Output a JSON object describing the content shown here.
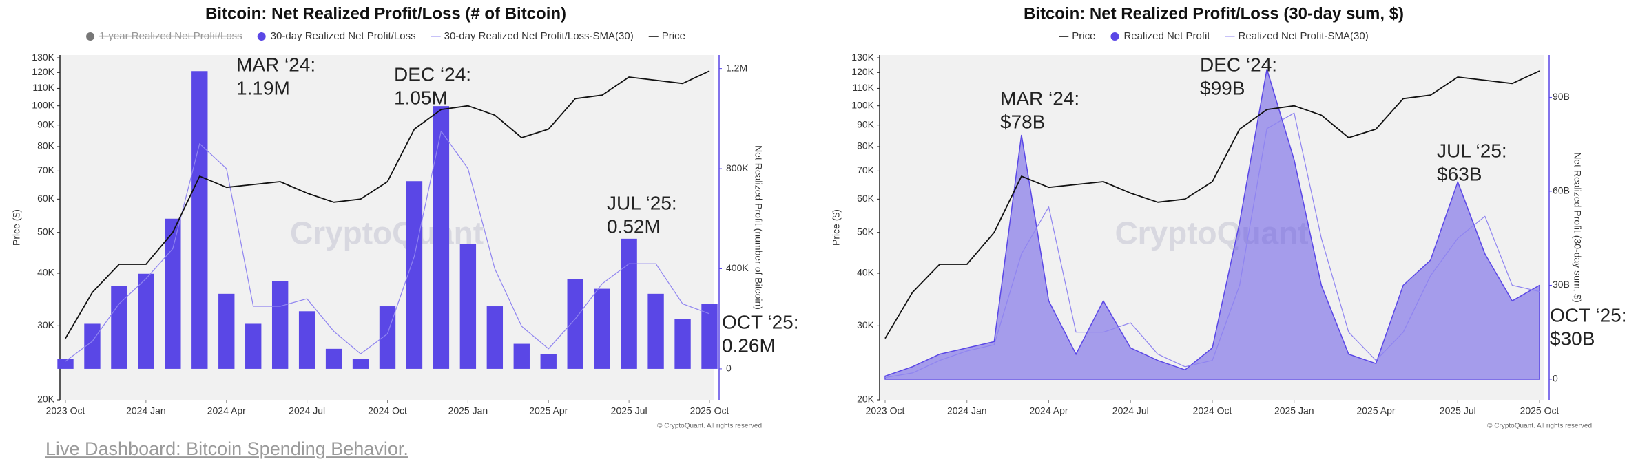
{
  "charts": [
    {
      "chart_data": {
        "type": "combo",
        "title": "Bitcoin: Net Realized Profit/Loss (# of Bitcoin)",
        "ylabel": "Price ($)",
        "y2label": "Net Realized Profit (number of Bitcoin)",
        "watermark": "CryptoQuant",
        "copyright": "© CryptoQuant. All rights reserved",
        "yscale": "log",
        "grid": false,
        "legend": "top",
        "x": [
          "2023-10",
          "2023-11",
          "2023-12",
          "2024-01",
          "2024-02",
          "2024-03",
          "2024-04",
          "2024-05",
          "2024-06",
          "2024-07",
          "2024-08",
          "2024-09",
          "2024-10",
          "2024-11",
          "2024-12",
          "2025-01",
          "2025-02",
          "2025-03",
          "2025-04",
          "2025-05",
          "2025-06",
          "2025-07",
          "2025-08",
          "2025-09",
          "2025-10"
        ],
        "xticks": [
          {
            "value": "2023-10",
            "label": "2023 Oct"
          },
          {
            "value": "2024-01",
            "label": "2024 Jan"
          },
          {
            "value": "2024-04",
            "label": "2024 Apr"
          },
          {
            "value": "2024-07",
            "label": "2024 Jul"
          },
          {
            "value": "2024-10",
            "label": "2024 Oct"
          },
          {
            "value": "2025-01",
            "label": "2025 Jan"
          },
          {
            "value": "2025-04",
            "label": "2025 Apr"
          },
          {
            "value": "2025-07",
            "label": "2025 Jul"
          },
          {
            "value": "2025-10",
            "label": "2025 Oct"
          }
        ],
        "ylim": [
          20000,
          132000
        ],
        "yticks": [
          {
            "value": 20000,
            "label": "20K"
          },
          {
            "value": 30000,
            "label": "30K"
          },
          {
            "value": 40000,
            "label": "40K"
          },
          {
            "value": 50000,
            "label": "50K"
          },
          {
            "value": 60000,
            "label": "60K"
          },
          {
            "value": 70000,
            "label": "70K"
          },
          {
            "value": 80000,
            "label": "80K"
          },
          {
            "value": 90000,
            "label": "90K"
          },
          {
            "value": 100000,
            "label": "100K"
          },
          {
            "value": 110000,
            "label": "110K"
          },
          {
            "value": 120000,
            "label": "120K"
          },
          {
            "value": 130000,
            "label": "130K"
          }
        ],
        "y2lim": [
          -124000,
          1254000
        ],
        "y2ticks": [
          0,
          {
            "value": 400000,
            "label": "400K"
          },
          {
            "value": 800000,
            "label": "800K"
          },
          {
            "value": 1200000,
            "label": "1.2M"
          }
        ],
        "series": [
          {
            "name": "1-year Realized Net Profit/Loss",
            "color": "#777777",
            "hidden": true
          },
          {
            "name": "30-day Realized Net Profit/Loss",
            "type": "bar",
            "axis": "y2",
            "color": "#5a47e6",
            "values": [
              40000,
              180000,
              330000,
              380000,
              600000,
              1190000,
              300000,
              180000,
              350000,
              230000,
              80000,
              40000,
              250000,
              750000,
              1050000,
              500000,
              250000,
              100000,
              60000,
              360000,
              320000,
              520000,
              300000,
              200000,
              260000
            ]
          },
          {
            "name": "30-day Realized Net Profit/Loss-SMA(30)",
            "type": "line",
            "axis": "y2",
            "color": "#8f84f0",
            "values": [
              30000,
              110000,
              260000,
              360000,
              480000,
              900000,
              800000,
              250000,
              250000,
              280000,
              150000,
              60000,
              140000,
              450000,
              950000,
              800000,
              400000,
              170000,
              80000,
              200000,
              340000,
              420000,
              420000,
              260000,
              220000
            ]
          },
          {
            "name": "Price",
            "type": "line",
            "axis": "y",
            "color": "#111111",
            "values": [
              28000,
              36000,
              42000,
              42000,
              50000,
              68000,
              64000,
              65000,
              66000,
              62000,
              59000,
              60000,
              66000,
              88000,
              98000,
              100000,
              95000,
              84000,
              88000,
              104000,
              106000,
              117000,
              115000,
              113000,
              121000
            ]
          }
        ],
        "annotations": [
          [
            "MAR ‘24:",
            "1.19M"
          ],
          [
            "DEC ‘24:",
            "1.05M"
          ],
          [
            "JUL ‘25:",
            "0.52M"
          ],
          [
            "OCT ‘25:",
            "0.26M"
          ]
        ]
      }
    },
    {
      "chart_data": {
        "type": "combo",
        "title": "Bitcoin: Net Realized Profit/Loss (30-day sum, $)",
        "ylabel": "Price ($)",
        "y2label": "Net Realized Profit (30-day sum, $)",
        "watermark": "CryptoQuant",
        "copyright": "© CryptoQuant. All rights reserved",
        "yscale": "log",
        "grid": false,
        "legend": "top",
        "x": [
          "2023-10",
          "2023-11",
          "2023-12",
          "2024-01",
          "2024-02",
          "2024-03",
          "2024-04",
          "2024-05",
          "2024-06",
          "2024-07",
          "2024-08",
          "2024-09",
          "2024-10",
          "2024-11",
          "2024-12",
          "2025-01",
          "2025-02",
          "2025-03",
          "2025-04",
          "2025-05",
          "2025-06",
          "2025-07",
          "2025-08",
          "2025-09",
          "2025-10"
        ],
        "xticks": [
          {
            "value": "2023-10",
            "label": "2023 Oct"
          },
          {
            "value": "2024-01",
            "label": "2024 Jan"
          },
          {
            "value": "2024-04",
            "label": "2024 Apr"
          },
          {
            "value": "2024-07",
            "label": "2024 Jul"
          },
          {
            "value": "2024-10",
            "label": "2024 Oct"
          },
          {
            "value": "2025-01",
            "label": "2025 Jan"
          },
          {
            "value": "2025-04",
            "label": "2025 Apr"
          },
          {
            "value": "2025-07",
            "label": "2025 Jul"
          },
          {
            "value": "2025-10",
            "label": "2025 Oct"
          }
        ],
        "ylim": [
          20000,
          132000
        ],
        "yticks": [
          {
            "value": 20000,
            "label": "20K"
          },
          {
            "value": 30000,
            "label": "30K"
          },
          {
            "value": 40000,
            "label": "40K"
          },
          {
            "value": 50000,
            "label": "50K"
          },
          {
            "value": 60000,
            "label": "60K"
          },
          {
            "value": 70000,
            "label": "70K"
          },
          {
            "value": 80000,
            "label": "80K"
          },
          {
            "value": 90000,
            "label": "90K"
          },
          {
            "value": 100000,
            "label": "100K"
          },
          {
            "value": 110000,
            "label": "110K"
          },
          {
            "value": 120000,
            "label": "120K"
          },
          {
            "value": 130000,
            "label": "130K"
          }
        ],
        "y2lim": [
          -6600000000,
          103500000000
        ],
        "y2ticks": [
          0,
          {
            "value": 30000000000,
            "label": "30B"
          },
          {
            "value": 60000000000,
            "label": "60B"
          },
          {
            "value": 90000000000,
            "label": "90B"
          }
        ],
        "series": [
          {
            "name": "Price",
            "type": "line",
            "axis": "y",
            "color": "#111111",
            "values": [
              28000,
              36000,
              42000,
              42000,
              50000,
              68000,
              64000,
              65000,
              66000,
              62000,
              59000,
              60000,
              66000,
              88000,
              98000,
              100000,
              95000,
              84000,
              88000,
              104000,
              106000,
              117000,
              115000,
              113000,
              121000
            ]
          },
          {
            "name": "Realized Net Profit",
            "type": "area",
            "axis": "y2",
            "color": "#5a47e6",
            "values": [
              1000000000,
              4000000000,
              8000000000,
              10000000000,
              12000000000,
              78000000000,
              25000000000,
              8000000000,
              25000000000,
              10000000000,
              6000000000,
              3000000000,
              10000000000,
              50000000000,
              99000000000,
              70000000000,
              30000000000,
              8000000000,
              5000000000,
              30000000000,
              38000000000,
              63000000000,
              40000000000,
              25000000000,
              30000000000
            ]
          },
          {
            "name": "Realized Net Profit-SMA(30)",
            "type": "line",
            "axis": "y2",
            "color": "#8f84f0",
            "values": [
              500000000,
              2000000000,
              6000000000,
              9000000000,
              11000000000,
              40000000000,
              55000000000,
              15000000000,
              15000000000,
              18000000000,
              8000000000,
              4000000000,
              6000000000,
              30000000000,
              80000000000,
              85000000000,
              45000000000,
              15000000000,
              6000000000,
              15000000000,
              33000000000,
              45000000000,
              52000000000,
              30000000000,
              28000000000
            ]
          }
        ],
        "annotations": [
          [
            "MAR ‘24:",
            "$78B"
          ],
          [
            "DEC ‘24:",
            "$99B"
          ],
          [
            "JUL ‘25:",
            "$63B"
          ],
          [
            "OCT ‘25:",
            "$30B"
          ]
        ]
      }
    }
  ],
  "footer": {
    "link": "Live Dashboard: Bitcoin Spending Behavior."
  }
}
